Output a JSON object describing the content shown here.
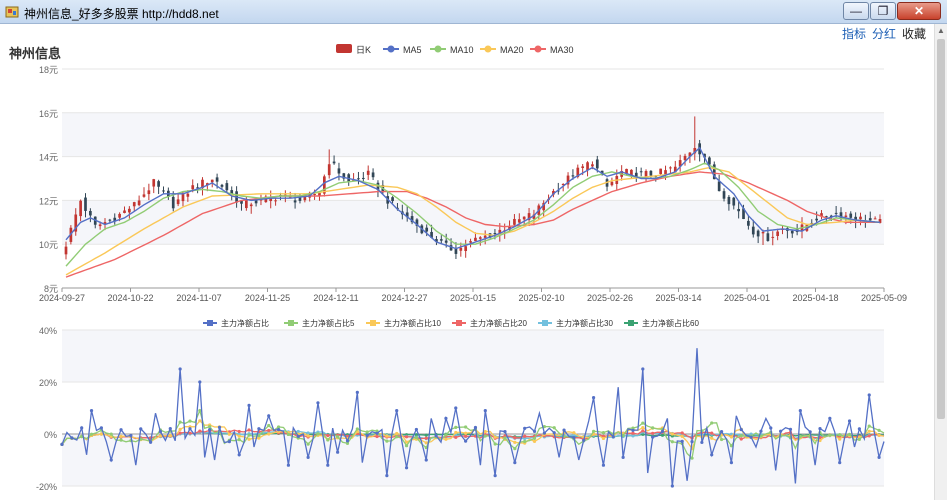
{
  "window": {
    "title": "神州信息_好多多股票  http://hdd8.net",
    "min_glyph": "—",
    "max_glyph": "❐",
    "close_glyph": "✕"
  },
  "header": {
    "stock_name": "神州信息",
    "links": [
      "指标",
      "分红",
      "收藏"
    ]
  },
  "colors": {
    "up": "#c23531",
    "down": "#314656",
    "ma5": "#5470c6",
    "ma10": "#91cc75",
    "ma20": "#fac858",
    "ma30": "#ee6666",
    "flow5": "#91cc75",
    "flow10": "#fac858",
    "flow20": "#ee6666",
    "flow30": "#73c0de",
    "flow60": "#3ba272"
  },
  "chart_data": [
    {
      "type": "line",
      "subtype": "candlestick",
      "legend": [
        "日K",
        "MA5",
        "MA10",
        "MA20",
        "MA30"
      ],
      "legend_position": "top-center",
      "y_ticks": [
        "8元",
        "10元",
        "12元",
        "14元",
        "16元",
        "18元"
      ],
      "ylim": [
        8,
        18
      ],
      "x_ticks": [
        "2024-09-27",
        "2024-10-22",
        "2024-11-07",
        "2024-11-25",
        "2024-12-11",
        "2024-12-27",
        "2025-01-15",
        "2025-02-10",
        "2025-02-26",
        "2025-03-14",
        "2025-04-01",
        "2025-04-18",
        "2025-05-09"
      ],
      "grid": true,
      "anchors": {
        "close": [
          [
            0,
            10.0
          ],
          [
            3,
            12.0
          ],
          [
            6,
            10.8
          ],
          [
            10,
            11.2
          ],
          [
            14,
            11.8
          ],
          [
            18,
            12.8
          ],
          [
            22,
            11.8
          ],
          [
            26,
            12.6
          ],
          [
            30,
            13.0
          ],
          [
            33,
            12.5
          ],
          [
            36,
            11.8
          ],
          [
            40,
            12.0
          ],
          [
            44,
            12.2
          ],
          [
            48,
            12.0
          ],
          [
            52,
            12.4
          ],
          [
            54,
            13.8
          ],
          [
            58,
            12.8
          ],
          [
            62,
            13.2
          ],
          [
            66,
            12.0
          ],
          [
            70,
            11.2
          ],
          [
            74,
            10.5
          ],
          [
            78,
            9.9
          ],
          [
            80,
            9.7
          ],
          [
            84,
            10.2
          ],
          [
            88,
            10.5
          ],
          [
            92,
            11.0
          ],
          [
            96,
            11.4
          ],
          [
            100,
            12.4
          ],
          [
            104,
            13.2
          ],
          [
            108,
            13.8
          ],
          [
            111,
            12.6
          ],
          [
            114,
            13.3
          ],
          [
            118,
            13.2
          ],
          [
            121,
            13.2
          ],
          [
            125,
            13.5
          ],
          [
            129,
            14.5
          ],
          [
            131,
            14.0
          ],
          [
            134,
            12.5
          ],
          [
            138,
            11.5
          ],
          [
            141,
            10.6
          ],
          [
            144,
            10.3
          ],
          [
            147,
            10.7
          ],
          [
            150,
            10.6
          ],
          [
            154,
            11.2
          ],
          [
            158,
            11.4
          ],
          [
            162,
            11.2
          ],
          [
            167,
            11.0
          ]
        ],
        "ma5": [
          [
            0,
            10.2
          ],
          [
            3,
            11.0
          ],
          [
            5,
            11.2
          ],
          [
            8,
            10.9
          ],
          [
            12,
            11.2
          ],
          [
            16,
            11.8
          ],
          [
            20,
            12.3
          ],
          [
            24,
            12.3
          ],
          [
            28,
            12.6
          ],
          [
            30,
            12.8
          ],
          [
            34,
            12.2
          ],
          [
            38,
            12.0
          ],
          [
            42,
            12.1
          ],
          [
            46,
            12.1
          ],
          [
            50,
            12.2
          ],
          [
            53,
            12.8
          ],
          [
            56,
            13.1
          ],
          [
            60,
            12.9
          ],
          [
            64,
            12.5
          ],
          [
            68,
            11.6
          ],
          [
            72,
            10.9
          ],
          [
            76,
            10.1
          ],
          [
            80,
            9.8
          ],
          [
            84,
            10.1
          ],
          [
            88,
            10.4
          ],
          [
            92,
            10.8
          ],
          [
            96,
            11.3
          ],
          [
            100,
            12.3
          ],
          [
            104,
            13.0
          ],
          [
            108,
            13.5
          ],
          [
            111,
            13.1
          ],
          [
            114,
            13.3
          ],
          [
            118,
            13.0
          ],
          [
            121,
            13.0
          ],
          [
            125,
            13.3
          ],
          [
            128,
            14.0
          ],
          [
            130,
            14.4
          ],
          [
            133,
            13.1
          ],
          [
            137,
            12.3
          ],
          [
            140,
            11.3
          ],
          [
            143,
            10.6
          ],
          [
            147,
            10.7
          ],
          [
            151,
            10.6
          ],
          [
            155,
            11.1
          ],
          [
            158,
            11.3
          ],
          [
            162,
            11.1
          ],
          [
            167,
            11.0
          ]
        ],
        "ma10": [
          [
            0,
            9.0
          ],
          [
            4,
            10.0
          ],
          [
            8,
            10.7
          ],
          [
            12,
            11.0
          ],
          [
            16,
            11.5
          ],
          [
            20,
            12.1
          ],
          [
            24,
            12.4
          ],
          [
            28,
            12.5
          ],
          [
            32,
            12.4
          ],
          [
            36,
            12.2
          ],
          [
            40,
            12.1
          ],
          [
            44,
            12.2
          ],
          [
            48,
            12.2
          ],
          [
            52,
            12.4
          ],
          [
            56,
            12.8
          ],
          [
            60,
            12.9
          ],
          [
            64,
            12.7
          ],
          [
            68,
            12.1
          ],
          [
            72,
            11.4
          ],
          [
            76,
            10.6
          ],
          [
            80,
            10.0
          ],
          [
            84,
            10.0
          ],
          [
            88,
            10.3
          ],
          [
            92,
            10.7
          ],
          [
            96,
            11.1
          ],
          [
            100,
            11.8
          ],
          [
            104,
            12.6
          ],
          [
            108,
            13.1
          ],
          [
            112,
            13.3
          ],
          [
            116,
            13.1
          ],
          [
            120,
            13.0
          ],
          [
            124,
            13.1
          ],
          [
            128,
            13.4
          ],
          [
            131,
            13.7
          ],
          [
            134,
            13.4
          ],
          [
            138,
            12.6
          ],
          [
            142,
            11.5
          ],
          [
            146,
            10.9
          ],
          [
            150,
            10.7
          ],
          [
            154,
            10.9
          ],
          [
            158,
            11.2
          ],
          [
            162,
            11.1
          ],
          [
            167,
            11.0
          ]
        ],
        "ma20": [
          [
            0,
            8.6
          ],
          [
            8,
            9.6
          ],
          [
            16,
            10.7
          ],
          [
            24,
            11.7
          ],
          [
            30,
            12.2
          ],
          [
            40,
            12.3
          ],
          [
            50,
            12.3
          ],
          [
            56,
            12.5
          ],
          [
            62,
            12.7
          ],
          [
            68,
            12.6
          ],
          [
            72,
            12.3
          ],
          [
            76,
            11.7
          ],
          [
            80,
            11.0
          ],
          [
            84,
            10.5
          ],
          [
            88,
            10.4
          ],
          [
            92,
            10.6
          ],
          [
            96,
            11.0
          ],
          [
            100,
            11.5
          ],
          [
            104,
            12.1
          ],
          [
            108,
            12.6
          ],
          [
            112,
            12.9
          ],
          [
            116,
            13.0
          ],
          [
            120,
            13.1
          ],
          [
            124,
            13.2
          ],
          [
            128,
            13.3
          ],
          [
            132,
            13.5
          ],
          [
            136,
            13.3
          ],
          [
            140,
            12.6
          ],
          [
            144,
            11.9
          ],
          [
            148,
            11.2
          ],
          [
            152,
            10.9
          ],
          [
            158,
            11.0
          ],
          [
            162,
            11.1
          ],
          [
            167,
            11.0
          ]
        ],
        "ma30": [
          [
            0,
            8.5
          ],
          [
            10,
            9.3
          ],
          [
            20,
            10.4
          ],
          [
            28,
            11.4
          ],
          [
            36,
            12.0
          ],
          [
            44,
            12.2
          ],
          [
            52,
            12.2
          ],
          [
            58,
            12.3
          ],
          [
            64,
            12.4
          ],
          [
            70,
            12.4
          ],
          [
            74,
            12.1
          ],
          [
            78,
            11.7
          ],
          [
            82,
            11.2
          ],
          [
            86,
            10.9
          ],
          [
            90,
            10.8
          ],
          [
            96,
            10.9
          ],
          [
            100,
            11.1
          ],
          [
            104,
            11.6
          ],
          [
            108,
            12.0
          ],
          [
            112,
            12.4
          ],
          [
            118,
            12.8
          ],
          [
            124,
            13.1
          ],
          [
            130,
            13.3
          ],
          [
            135,
            13.2
          ],
          [
            140,
            12.8
          ],
          [
            144,
            12.4
          ],
          [
            148,
            12.0
          ],
          [
            152,
            11.5
          ],
          [
            156,
            11.2
          ],
          [
            160,
            11.0
          ],
          [
            167,
            11.0
          ]
        ]
      }
    },
    {
      "type": "line",
      "legend": [
        "主力净额占比",
        "主力净额占比5",
        "主力净额占比10",
        "主力净额占比20",
        "主力净额占比30",
        "主力净额占比60"
      ],
      "legend_position": "top-center",
      "y_ticks": [
        "-20%",
        "0%",
        "20%",
        "40%"
      ],
      "ylim": [
        -20,
        40
      ],
      "grid": true,
      "spikes": [
        [
          0,
          -4
        ],
        [
          5,
          -8
        ],
        [
          10,
          -10
        ],
        [
          15,
          -12
        ],
        [
          19,
          8
        ],
        [
          24,
          -8
        ],
        [
          29,
          -9
        ],
        [
          31,
          -10
        ],
        [
          36,
          -8
        ],
        [
          39,
          -5
        ],
        [
          42,
          -14
        ],
        [
          46,
          -12
        ],
        [
          50,
          -9
        ],
        [
          54,
          -12
        ],
        [
          56,
          -7
        ],
        [
          61,
          -11
        ],
        [
          66,
          -16
        ],
        [
          70,
          -13
        ],
        [
          74,
          -10
        ],
        [
          78,
          -15
        ],
        [
          85,
          -12
        ],
        [
          88,
          -16
        ],
        [
          92,
          -11
        ],
        [
          97,
          -14
        ],
        [
          101,
          -9
        ],
        [
          105,
          -10
        ],
        [
          107,
          5
        ],
        [
          110,
          -12
        ],
        [
          114,
          -9
        ],
        [
          119,
          -15
        ],
        [
          124,
          -20
        ],
        [
          127,
          -18
        ],
        [
          132,
          -8
        ],
        [
          136,
          -11
        ],
        [
          141,
          -5
        ],
        [
          145,
          -14
        ],
        [
          149,
          -19
        ],
        [
          153,
          -12
        ],
        [
          158,
          -11
        ],
        [
          161,
          -5
        ],
        [
          166,
          -9
        ]
      ],
      "peaks": [
        [
          6,
          9
        ],
        [
          24,
          25
        ],
        [
          28,
          20
        ],
        [
          38,
          11
        ],
        [
          42,
          7
        ],
        [
          52,
          12
        ],
        [
          60,
          16
        ],
        [
          68,
          9
        ],
        [
          75,
          6
        ],
        [
          78,
          6
        ],
        [
          80,
          10
        ],
        [
          86,
          9
        ],
        [
          97,
          8
        ],
        [
          108,
          14
        ],
        [
          113,
          18
        ],
        [
          118,
          25
        ],
        [
          123,
          6
        ],
        [
          129,
          33
        ],
        [
          137,
          7
        ],
        [
          143,
          6
        ],
        [
          150,
          9
        ],
        [
          156,
          6
        ],
        [
          160,
          5
        ],
        [
          164,
          15
        ]
      ]
    }
  ]
}
